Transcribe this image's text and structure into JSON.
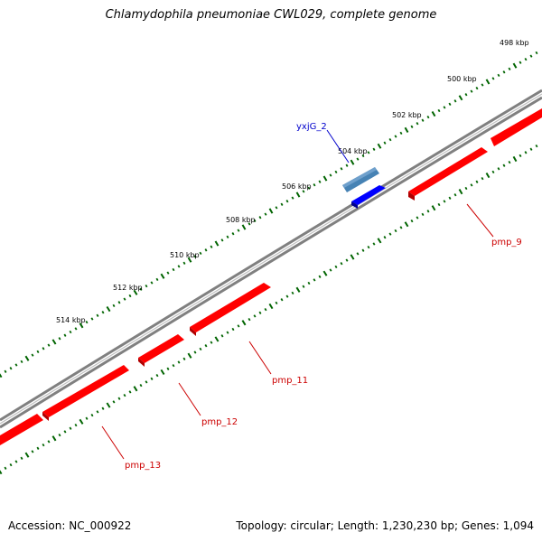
{
  "title": "Chlamydophila pneumoniae CWL029, complete genome",
  "footer": {
    "accession": "Accession: NC_000922",
    "summary": "Topology: circular; Length: 1,230,230 bp; Genes: 1,094"
  },
  "scale": {
    "labels": [
      "498 kbp",
      "500 kbp",
      "502 kbp",
      "504 kbp",
      "506 kbp",
      "508 kbp",
      "510 kbp",
      "512 kbp",
      "514 kbp"
    ]
  },
  "genes": [
    {
      "name": "yxjG_2",
      "strand": "forward"
    },
    {
      "name": "pmp_9",
      "strand": "reverse"
    },
    {
      "name": "pmp_11",
      "strand": "reverse"
    },
    {
      "name": "pmp_12",
      "strand": "reverse"
    },
    {
      "name": "pmp_13",
      "strand": "reverse"
    }
  ],
  "colors": {
    "backbone": "#808080",
    "tick": "#006400",
    "reverse_gene": "#ff0000",
    "forward_gene": "#0000ff",
    "forward_cds": "#4682b4",
    "forward_label": "#0000cc",
    "reverse_label": "#cc0000"
  }
}
